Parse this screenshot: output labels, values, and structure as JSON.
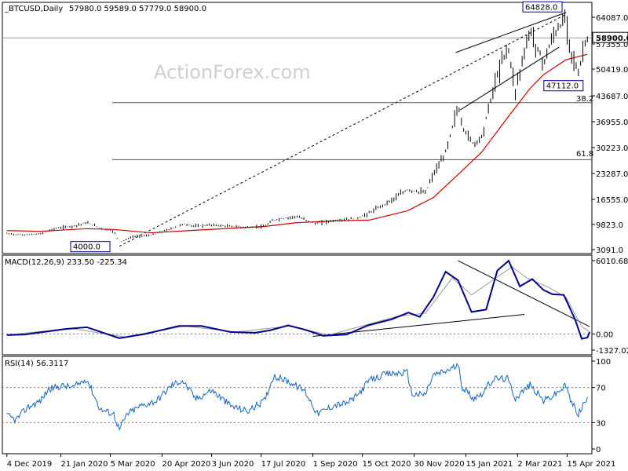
{
  "chart_data": [
    {
      "type": "line",
      "subtype": "ohlc-bars",
      "symbol": "BTCUSD",
      "header": {
        "symbol_label": "_BTCUSD,Daily",
        "ohlc_label": "57980.0  59589.0  57779.0  58900.0",
        "open": 57980.0,
        "high": 59589.0,
        "low": 57779.0,
        "close": 58900.0
      },
      "watermark": "ActionForex.com",
      "y_ticks": [
        "64087.0",
        "57355.0",
        "50419.0",
        "43687.0",
        "36955.0",
        "30223.0",
        "23287.0",
        "16555.0",
        "9823.0",
        "3091.0"
      ],
      "y_tick_values": [
        64087.0,
        57355.0,
        50419.0,
        43687.0,
        36955.0,
        30223.0,
        23287.0,
        16555.0,
        9823.0,
        3091.0
      ],
      "ylim": [
        3091,
        67000
      ],
      "last_price": {
        "label": "58900.0",
        "value": 58900.0
      },
      "annotations": [
        {
          "label": "64828.0",
          "value": 64828.0,
          "date": "2021-04-14"
        },
        {
          "label": "47112.0",
          "value": 47112.0,
          "date": "2021-04-25"
        },
        {
          "label": "4000.0",
          "value": 4000.0,
          "date": "2020-03-13"
        }
      ],
      "fib_levels": [
        {
          "label": "38.2",
          "value": 41900
        },
        {
          "label": "61.8",
          "value": 27000
        }
      ],
      "trendlines": [
        {
          "name": "long-term trendline",
          "style": "dashed",
          "x1": "2020-03-13",
          "y1": 4000,
          "x2": "2021-04-14",
          "y2": 64828
        },
        {
          "name": "channel-upper",
          "style": "solid",
          "x1": "2021-01-06",
          "y1": 55000,
          "x2": "2021-04-14",
          "y2": 65300
        },
        {
          "name": "channel-lower",
          "style": "solid",
          "x1": "2021-01-10",
          "y1": 40000,
          "x2": "2021-04-08",
          "y2": 56500
        }
      ],
      "series": [
        {
          "style": "bars",
          "color": "#000000",
          "points": [
            [
              "2019-12-04",
              7400
            ],
            [
              "2019-12-18",
              7000
            ],
            [
              "2020-01-03",
              7300
            ],
            [
              "2020-01-15",
              8700
            ],
            [
              "2020-02-01",
              9400
            ],
            [
              "2020-02-13",
              10300
            ],
            [
              "2020-02-28",
              8600
            ],
            [
              "2020-03-08",
              8000
            ],
            [
              "2020-03-13",
              5000
            ],
            [
              "2020-03-25",
              6600
            ],
            [
              "2020-04-10",
              6900
            ],
            [
              "2020-04-29",
              8800
            ],
            [
              "2020-05-08",
              9900
            ],
            [
              "2020-05-20",
              9400
            ],
            [
              "2020-06-03",
              9700
            ],
            [
              "2020-06-20",
              9300
            ],
            [
              "2020-07-05",
              9100
            ],
            [
              "2020-07-20",
              9300
            ],
            [
              "2020-07-28",
              11000
            ],
            [
              "2020-08-17",
              12000
            ],
            [
              "2020-09-03",
              10100
            ],
            [
              "2020-09-20",
              10900
            ],
            [
              "2020-10-10",
              11400
            ],
            [
              "2020-10-21",
              12900
            ],
            [
              "2020-11-05",
              15500
            ],
            [
              "2020-11-24",
              19000
            ],
            [
              "2020-12-10",
              18300
            ],
            [
              "2020-12-17",
              23000
            ],
            [
              "2020-12-27",
              28000
            ],
            [
              "2021-01-08",
              41000
            ],
            [
              "2021-01-12",
              35500
            ],
            [
              "2021-01-22",
              31000
            ],
            [
              "2021-01-29",
              33000
            ],
            [
              "2021-02-09",
              46000
            ],
            [
              "2021-02-21",
              57000
            ],
            [
              "2021-02-28",
              45000
            ],
            [
              "2021-03-13",
              61000
            ],
            [
              "2021-03-25",
              52000
            ],
            [
              "2021-04-02",
              59000
            ],
            [
              "2021-04-14",
              64000
            ],
            [
              "2021-04-18",
              56000
            ],
            [
              "2021-04-25",
              49000
            ],
            [
              "2021-04-30",
              57000
            ],
            [
              "2021-05-03",
              58900
            ]
          ]
        },
        {
          "style": "line",
          "color": "#cc0000",
          "points": [
            [
              "2019-12-04",
              8200
            ],
            [
              "2020-01-03",
              8000
            ],
            [
              "2020-02-13",
              8700
            ],
            [
              "2020-03-08",
              8500
            ],
            [
              "2020-04-10",
              7600
            ],
            [
              "2020-05-20",
              8300
            ],
            [
              "2020-07-20",
              9300
            ],
            [
              "2020-08-17",
              10300
            ],
            [
              "2020-09-20",
              10800
            ],
            [
              "2020-10-21",
              11000
            ],
            [
              "2020-11-24",
              13500
            ],
            [
              "2020-12-17",
              17000
            ],
            [
              "2021-01-08",
              23000
            ],
            [
              "2021-01-29",
              29000
            ],
            [
              "2021-02-21",
              38000
            ],
            [
              "2021-03-13",
              45500
            ],
            [
              "2021-03-25",
              49000
            ],
            [
              "2021-04-14",
              53000
            ],
            [
              "2021-05-03",
              54500
            ]
          ]
        }
      ]
    },
    {
      "type": "line",
      "title": "MACD(12,26,9) 233.50 -225.34",
      "y_ticks": [
        "6010.68",
        "0.00",
        "-1327.02"
      ],
      "ylim": [
        -1327.02,
        6010.68
      ],
      "zero_line_dotted": true,
      "trendlines": [
        {
          "name": "macd-support",
          "x1": "2020-09-01",
          "y1": -200,
          "x2": "2021-03-08",
          "y2": 1600
        },
        {
          "name": "macd-resistance",
          "x1": "2021-01-08",
          "y1": 6010,
          "x2": "2021-05-05",
          "y2": 600
        }
      ],
      "series": [
        {
          "style": "line",
          "color": "#00008b",
          "points": [
            [
              "2019-12-04",
              -100
            ],
            [
              "2019-12-20",
              -50
            ],
            [
              "2020-01-25",
              400
            ],
            [
              "2020-02-13",
              550
            ],
            [
              "2020-03-13",
              -350
            ],
            [
              "2020-04-05",
              0
            ],
            [
              "2020-05-05",
              650
            ],
            [
              "2020-05-25",
              650
            ],
            [
              "2020-06-20",
              150
            ],
            [
              "2020-07-12",
              100
            ],
            [
              "2020-07-25",
              300
            ],
            [
              "2020-08-10",
              700
            ],
            [
              "2020-08-25",
              350
            ],
            [
              "2020-09-10",
              -150
            ],
            [
              "2020-10-01",
              -50
            ],
            [
              "2020-10-20",
              700
            ],
            [
              "2020-11-10",
              1200
            ],
            [
              "2020-11-25",
              1750
            ],
            [
              "2020-12-05",
              1400
            ],
            [
              "2020-12-17",
              3000
            ],
            [
              "2020-12-28",
              5100
            ],
            [
              "2021-01-08",
              4400
            ],
            [
              "2021-01-20",
              1800
            ],
            [
              "2021-02-02",
              2000
            ],
            [
              "2021-02-12",
              5200
            ],
            [
              "2021-02-22",
              6000
            ],
            [
              "2021-03-04",
              3900
            ],
            [
              "2021-03-15",
              4500
            ],
            [
              "2021-03-25",
              3600
            ],
            [
              "2021-04-02",
              3250
            ],
            [
              "2021-04-12",
              3200
            ],
            [
              "2021-04-22",
              1200
            ],
            [
              "2021-04-28",
              -400
            ],
            [
              "2021-05-03",
              -300
            ],
            [
              "2021-05-05",
              150
            ]
          ]
        },
        {
          "style": "line",
          "color": "#9a9a9a",
          "points": [
            [
              "2019-12-04",
              -80
            ],
            [
              "2020-01-30",
              450
            ],
            [
              "2020-03-18",
              -250
            ],
            [
              "2020-05-10",
              650
            ],
            [
              "2020-06-25",
              150
            ],
            [
              "2020-08-12",
              650
            ],
            [
              "2020-09-15",
              -100
            ],
            [
              "2020-11-15",
              1450
            ],
            [
              "2020-12-10",
              1700
            ],
            [
              "2021-01-03",
              4600
            ],
            [
              "2021-01-20",
              3200
            ],
            [
              "2021-02-25",
              5500
            ],
            [
              "2021-03-10",
              4600
            ],
            [
              "2021-03-30",
              3800
            ],
            [
              "2021-04-14",
              3000
            ],
            [
              "2021-04-28",
              600
            ],
            [
              "2021-05-05",
              200
            ]
          ]
        }
      ]
    },
    {
      "type": "line",
      "title": "RSI(14) 56.3117",
      "y_ticks": [
        "100",
        "70",
        "30",
        "0"
      ],
      "ylim": [
        0,
        100
      ],
      "levels_dotted": [
        70,
        30
      ],
      "series": [
        {
          "style": "line",
          "color": "#1565c0",
          "points": [
            [
              "2019-12-04",
              38
            ],
            [
              "2019-12-12",
              33
            ],
            [
              "2019-12-22",
              47
            ],
            [
              "2020-01-03",
              55
            ],
            [
              "2020-01-10",
              68
            ],
            [
              "2020-01-22",
              72
            ],
            [
              "2020-02-01",
              70
            ],
            [
              "2020-02-13",
              80
            ],
            [
              "2020-02-25",
              45
            ],
            [
              "2020-03-08",
              40
            ],
            [
              "2020-03-13",
              22
            ],
            [
              "2020-03-20",
              40
            ],
            [
              "2020-04-01",
              49
            ],
            [
              "2020-04-15",
              55
            ],
            [
              "2020-04-29",
              73
            ],
            [
              "2020-05-08",
              78
            ],
            [
              "2020-05-20",
              57
            ],
            [
              "2020-06-03",
              67
            ],
            [
              "2020-06-20",
              49
            ],
            [
              "2020-07-05",
              43
            ],
            [
              "2020-07-20",
              55
            ],
            [
              "2020-07-28",
              83
            ],
            [
              "2020-08-10",
              77
            ],
            [
              "2020-08-25",
              66
            ],
            [
              "2020-09-05",
              40
            ],
            [
              "2020-09-20",
              50
            ],
            [
              "2020-10-01",
              52
            ],
            [
              "2020-10-10",
              60
            ],
            [
              "2020-10-21",
              78
            ],
            [
              "2020-11-05",
              85
            ],
            [
              "2020-11-24",
              87
            ],
            [
              "2020-11-28",
              62
            ],
            [
              "2020-12-10",
              62
            ],
            [
              "2020-12-17",
              84
            ],
            [
              "2020-12-27",
              88
            ],
            [
              "2021-01-08",
              95
            ],
            [
              "2021-01-12",
              70
            ],
            [
              "2021-01-22",
              58
            ],
            [
              "2021-01-29",
              63
            ],
            [
              "2021-02-09",
              80
            ],
            [
              "2021-02-21",
              80
            ],
            [
              "2021-02-28",
              58
            ],
            [
              "2021-03-13",
              73
            ],
            [
              "2021-03-25",
              55
            ],
            [
              "2021-04-02",
              60
            ],
            [
              "2021-04-14",
              72
            ],
            [
              "2021-04-18",
              55
            ],
            [
              "2021-04-25",
              40
            ],
            [
              "2021-04-30",
              52
            ],
            [
              "2021-05-03",
              56
            ]
          ]
        }
      ]
    }
  ],
  "x_axis": {
    "ticks": [
      {
        "label": "4 Dec 2019",
        "date": "2019-12-04"
      },
      {
        "label": "21 Jan 2020",
        "date": "2020-01-21"
      },
      {
        "label": "5 Mar 2020",
        "date": "2020-03-05"
      },
      {
        "label": "20 Apr 2020",
        "date": "2020-04-20"
      },
      {
        "label": "3 Jun 2020",
        "date": "2020-06-03"
      },
      {
        "label": "17 Jul 2020",
        "date": "2020-07-17"
      },
      {
        "label": "1 Sep 2020",
        "date": "2020-09-01"
      },
      {
        "label": "15 Oct 2020",
        "date": "2020-10-15"
      },
      {
        "label": "30 Nov 2020",
        "date": "2020-11-30"
      },
      {
        "label": "15 Jan 2021",
        "date": "2021-01-15"
      },
      {
        "label": "2 Mar 2021",
        "date": "2021-03-02"
      },
      {
        "label": "15 Apr 2021",
        "date": "2021-04-15"
      }
    ],
    "range": [
      "2019-11-30",
      "2021-05-07"
    ]
  },
  "colors": {
    "bars": "#000000",
    "ma": "#cc0000",
    "macd": "#00008b",
    "signal": "#9a9a9a",
    "rsi": "#1565c0",
    "grid": "#333333",
    "watermark": "#cfcfcf",
    "label_box": "#00008b"
  }
}
